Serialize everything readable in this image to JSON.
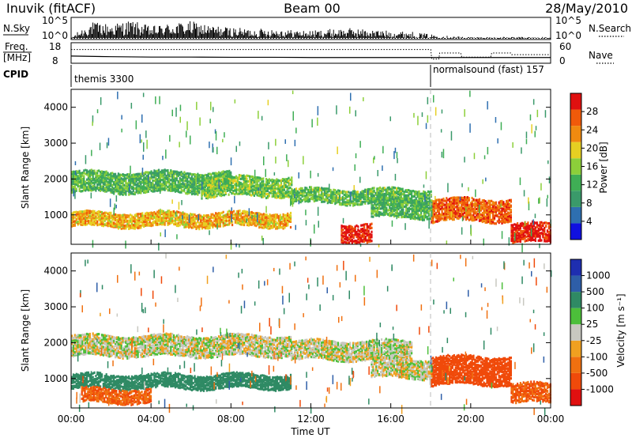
{
  "header": {
    "station": "Inuvik (fitACF)",
    "beam": "Beam 00",
    "date": "28/May/2010"
  },
  "top_panels": {
    "nsky_label": "N.Sky",
    "nsearch_label": "N.Search",
    "freq_label": "Freq.",
    "freq_unit": "[MHz]",
    "nave_label": "Nave",
    "cpid_label": "CPID",
    "n_ticks_left": [
      "10^5",
      "10^0"
    ],
    "n_ticks_right": [
      "10^5",
      "10^0"
    ],
    "freq_ticks": [
      "18",
      "8"
    ],
    "nave_ticks": [
      "60",
      "0"
    ],
    "cpid_segments": [
      {
        "label": "themis 3300",
        "start_hour": 0
      },
      {
        "label": "normalsound (fast) 157",
        "start_hour": 18
      }
    ]
  },
  "colors": {
    "power_scale": [
      "#1010e0",
      "#2e6fb0",
      "#3a9a6a",
      "#3fae55",
      "#8ccf3a",
      "#e6cf22",
      "#f08a10",
      "#f05a0a",
      "#e01010"
    ],
    "velocity_scale": [
      "#1e2eb0",
      "#2e5ea8",
      "#2f8a64",
      "#4cbf3a",
      "#c8c8c0",
      "#f0a020",
      "#f07010",
      "#f04a0a",
      "#e01010"
    ],
    "gray_band": "#c8c8c0"
  },
  "chart_data": [
    {
      "type": "line",
      "title": "N.Sky / N.Search",
      "x_range_hours": [
        0,
        24
      ],
      "ylim_log10": [
        0,
        5
      ],
      "series": [
        {
          "name": "N.Sky",
          "style": "solid",
          "x": [
            0,
            1,
            2,
            3,
            4,
            5,
            6,
            7,
            8,
            9,
            10,
            11,
            12,
            13,
            14,
            15,
            16,
            17,
            18,
            19,
            20,
            21,
            22,
            23,
            24
          ],
          "y_log10": [
            0.3,
            2.0,
            1.8,
            2.2,
            1.5,
            1.9,
            2.1,
            1.6,
            1.4,
            1.2,
            1.3,
            1.1,
            1.0,
            1.2,
            1.3,
            1.1,
            1.0,
            0.9,
            0.6,
            0.4,
            0.3,
            0.3,
            0.3,
            0.3,
            0.3
          ]
        },
        {
          "name": "N.Search",
          "style": "dotted",
          "x": [
            0,
            24
          ],
          "y_log10": [
            0.1,
            0.1
          ]
        }
      ]
    },
    {
      "type": "line",
      "title": "Freq. / Nave",
      "x_range_hours": [
        0,
        24
      ],
      "freq_ylim": [
        8,
        18
      ],
      "nave_ylim": [
        0,
        60
      ],
      "series": [
        {
          "name": "Freq.",
          "style": "solid",
          "x": [
            0,
            2,
            4,
            6,
            8,
            10,
            12,
            14,
            16,
            18,
            18.2,
            19,
            19.5,
            20,
            21,
            21.5,
            22,
            23,
            24
          ],
          "y": [
            11.5,
            11.2,
            11.0,
            11.0,
            10.9,
            10.9,
            10.8,
            10.8,
            10.8,
            10.8,
            10.8,
            10.8,
            10.8,
            10.8,
            10.8,
            10.8,
            10.8,
            10.8,
            10.8
          ]
        },
        {
          "name": "Nave",
          "style": "solid",
          "x": [
            0,
            18,
            18.05,
            18.4,
            18.45,
            19.5,
            19.55,
            21.0,
            21.05,
            22.0,
            22.05,
            24
          ],
          "y": [
            40,
            40,
            12,
            12,
            30,
            30,
            18,
            18,
            30,
            30,
            25,
            25
          ]
        }
      ]
    },
    {
      "type": "heatmap",
      "title": "Power",
      "xlabel": "",
      "ylabel": "Slant Range [km]",
      "x_range_hours": [
        0,
        24
      ],
      "ylim": [
        180,
        4500
      ],
      "y_ticks": [
        1000,
        2000,
        3000,
        4000
      ],
      "colorbar": {
        "label": "Power [dB]",
        "ticks": [
          4,
          8,
          12,
          16,
          20,
          24,
          28
        ]
      },
      "bands": [
        {
          "x0": 0,
          "x1": 8,
          "y0": 1600,
          "y1": 2150,
          "value": 12
        },
        {
          "x0": 6.5,
          "x1": 11,
          "y0": 1500,
          "y1": 2000,
          "value": 14
        },
        {
          "x0": 0,
          "x1": 11,
          "y0": 650,
          "y1": 1050,
          "value": 20
        },
        {
          "x0": 11,
          "x1": 18,
          "y0": 1300,
          "y1": 1700,
          "value": 13
        },
        {
          "x0": 13.5,
          "x1": 15,
          "y0": 200,
          "y1": 700,
          "value": 28
        },
        {
          "x0": 18,
          "x1": 22,
          "y0": 800,
          "y1": 1400,
          "value": 24
        },
        {
          "x0": 22,
          "x1": 24,
          "y0": 200,
          "y1": 700,
          "value": 28
        },
        {
          "x0": 15,
          "x1": 18,
          "y0": 900,
          "y1": 1400,
          "value": 12
        }
      ]
    },
    {
      "type": "heatmap",
      "title": "Velocity",
      "xlabel": "Time UT",
      "ylabel": "Slant Range [km]",
      "x_range_hours": [
        0,
        24
      ],
      "ylim": [
        180,
        4500
      ],
      "y_ticks": [
        1000,
        2000,
        3000,
        4000
      ],
      "x_ticks": [
        "00:00",
        "04:00",
        "08:00",
        "12:00",
        "16:00",
        "20:00",
        "00:00"
      ],
      "colorbar": {
        "label": "Velocity [m s⁻¹]",
        "ticks": [
          1000,
          500,
          100,
          25,
          -25,
          -100,
          -500,
          -1000
        ]
      },
      "bands": [
        {
          "x0": 0,
          "x1": 11,
          "y0": 1600,
          "y1": 2150,
          "value": 0
        },
        {
          "x0": 11,
          "x1": 17,
          "y0": 1500,
          "y1": 2000,
          "value": 0
        },
        {
          "x0": 0,
          "x1": 11,
          "y0": 700,
          "y1": 1100,
          "value": 150
        },
        {
          "x0": 0.5,
          "x1": 4,
          "y0": 300,
          "y1": 700,
          "value": -300
        },
        {
          "x0": 18,
          "x1": 22,
          "y0": 800,
          "y1": 1600,
          "value": -400
        },
        {
          "x0": 22,
          "x1": 24,
          "y0": 300,
          "y1": 800,
          "value": -300
        },
        {
          "x0": 15,
          "x1": 18,
          "y0": 1000,
          "y1": 1500,
          "value": 0
        }
      ]
    }
  ]
}
